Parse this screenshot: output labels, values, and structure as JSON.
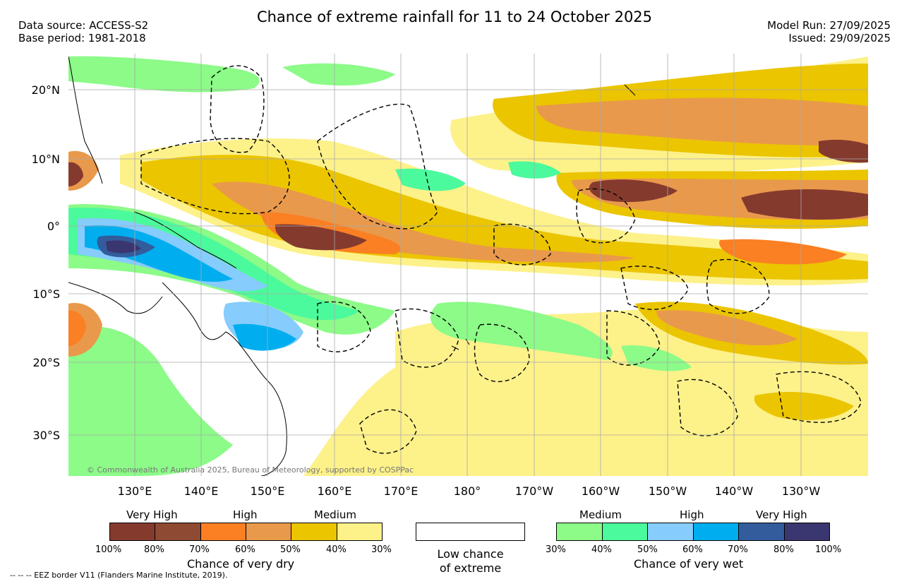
{
  "header": {
    "title": "Chance of extreme rainfall for 11 to 24 October 2025",
    "data_source": "Data source: ACCESS-S2",
    "base_period": "Base period: 1981-2018",
    "model_run": "Model Run: 27/09/2025",
    "issued": "Issued: 29/09/2025"
  },
  "map": {
    "lat_labels": [
      "20°N",
      "10°N",
      "0°",
      "10°S",
      "20°S",
      "30°S"
    ],
    "lon_labels": [
      "130°E",
      "140°E",
      "150°E",
      "160°E",
      "170°E",
      "180°",
      "170°W",
      "160°W",
      "150°W",
      "140°W",
      "130°W"
    ],
    "copyright": "© Commonwealth of Australia 2025, Bureau of Meteorology, supported by COSPPac"
  },
  "legend": {
    "dry": {
      "categories": [
        "Very High",
        "High",
        "Medium"
      ],
      "ticks": [
        "100%",
        "80%",
        "70%",
        "60%",
        "50%",
        "40%",
        "30%"
      ],
      "colors": [
        "#853a2e",
        "#8e4a32",
        "#fb7f23",
        "#e9994b",
        "#ebc500",
        "#fdf18a"
      ],
      "caption": "Chance of very dry"
    },
    "low": {
      "caption_line1": "Low chance",
      "caption_line2": "of extreme"
    },
    "wet": {
      "categories": [
        "Medium",
        "High",
        "Very High"
      ],
      "ticks": [
        "30%",
        "40%",
        "50%",
        "60%",
        "70%",
        "80%",
        "100%"
      ],
      "colors": [
        "#8cfb88",
        "#4bfa9c",
        "#86ccfd",
        "#00aeef",
        "#325c9c",
        "#3a366f"
      ],
      "caption": "Chance of very wet"
    }
  },
  "footnote": "-- -- -- EEZ border V11 (Flanders Marine Institute, 2019)."
}
